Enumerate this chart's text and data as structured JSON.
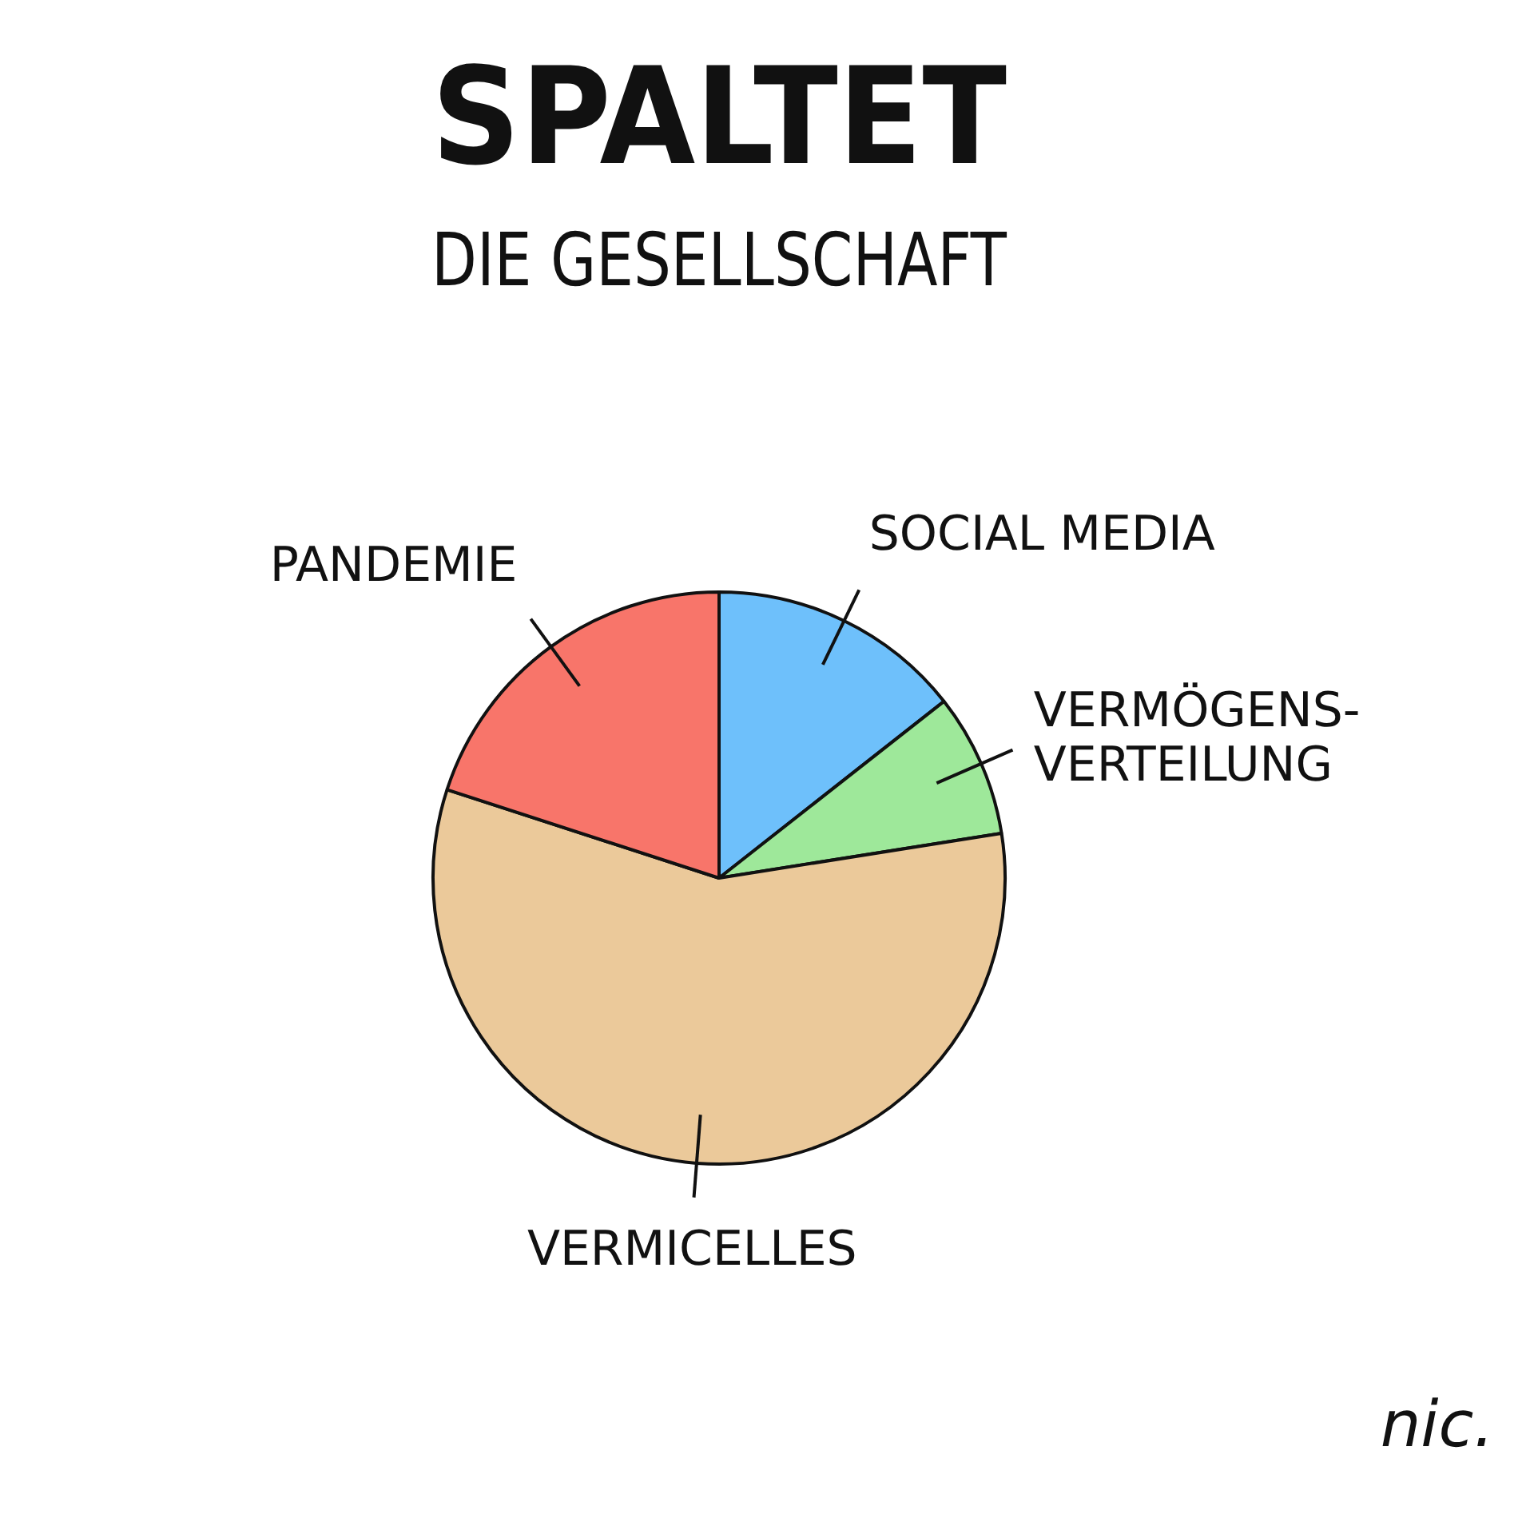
{
  "chart_data": {
    "type": "pie",
    "title": "SPALTET",
    "subtitle": "DIE GESELLSCHAFT",
    "categories": [
      "SOCIAL MEDIA",
      "VERMÖGENS-VERTEILUNG",
      "VERMICELLES",
      "PANDEMIE"
    ],
    "values": [
      14.4,
      8.1,
      57.5,
      20
    ],
    "colors": [
      "#6ec0fb",
      "#9ee89a",
      "#ebc99a",
      "#f8756a"
    ],
    "legend": false,
    "annotations": [
      "nic."
    ]
  }
}
